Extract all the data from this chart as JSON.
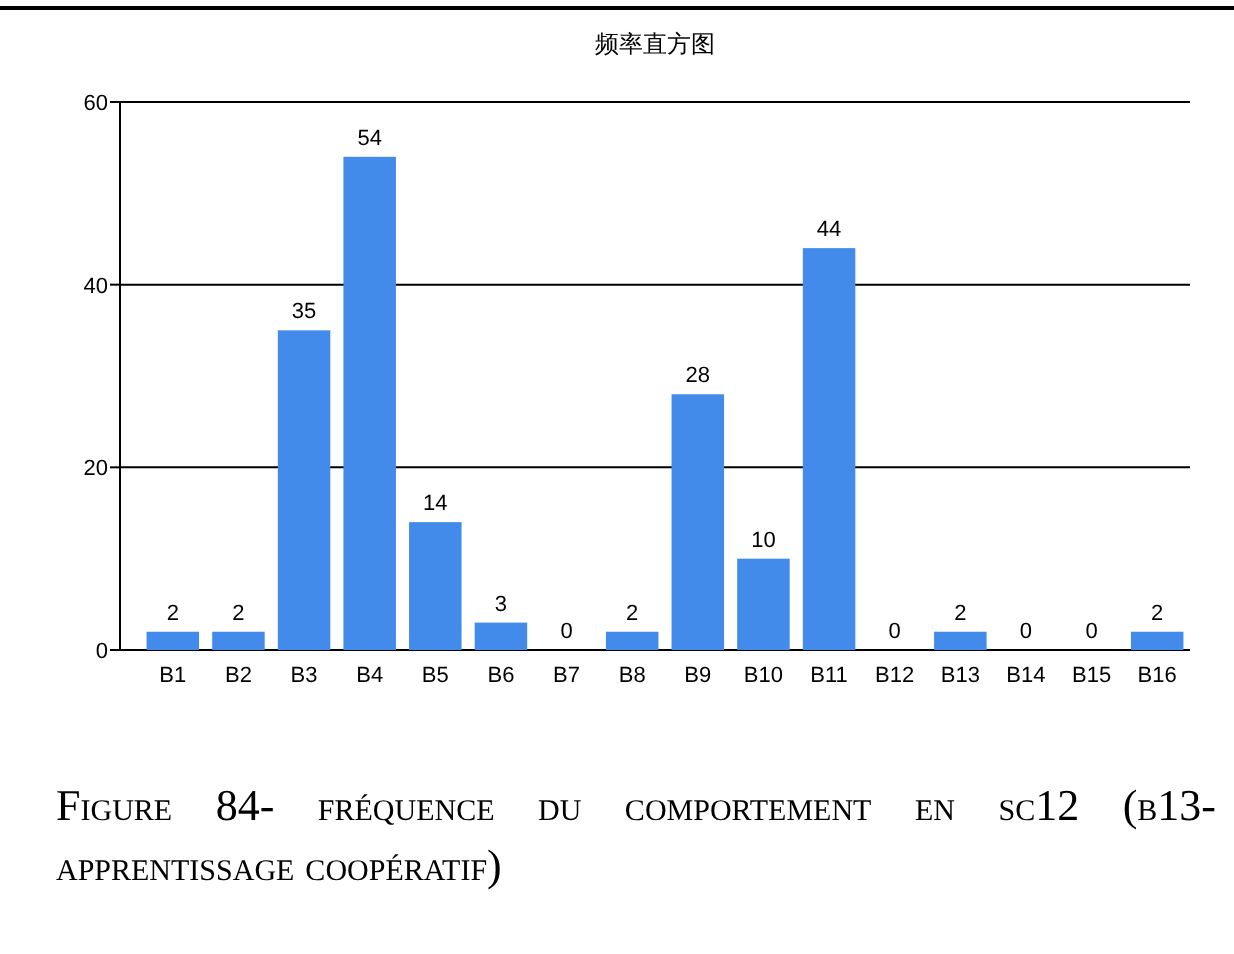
{
  "chart_data": {
    "type": "bar",
    "title": "频率直方图",
    "categories": [
      "B1",
      "B2",
      "B3",
      "B4",
      "B5",
      "B6",
      "B7",
      "B8",
      "B9",
      "B10",
      "B11",
      "B12",
      "B13",
      "B14",
      "B15",
      "B16"
    ],
    "values": [
      2,
      2,
      35,
      54,
      14,
      3,
      0,
      2,
      28,
      10,
      44,
      0,
      2,
      0,
      0,
      2
    ],
    "color": "#428bea",
    "ylim": [
      0,
      60
    ],
    "yticks": [
      0,
      20,
      40,
      60
    ],
    "grid": "y",
    "data_labels": true,
    "annotations": [
      "Figure 84- fréquence du comportement en sc12 (b13- apprentissage coopératif)"
    ]
  }
}
